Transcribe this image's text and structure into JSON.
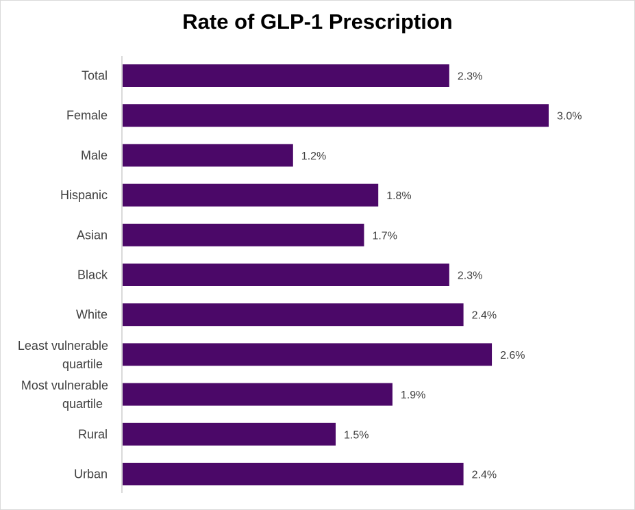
{
  "chart_data": {
    "type": "bar",
    "orientation": "horizontal",
    "title": "Rate of GLP-1 Prescription",
    "categories": [
      [
        "Total"
      ],
      [
        "Female"
      ],
      [
        "Male"
      ],
      [
        "Hispanic"
      ],
      [
        "Asian"
      ],
      [
        "Black"
      ],
      [
        "White"
      ],
      [
        "Least vulnerable",
        "quartile"
      ],
      [
        "Most vulnerable",
        "quartile"
      ],
      [
        "Rural"
      ],
      [
        "Urban"
      ]
    ],
    "values": [
      2.3,
      3.0,
      1.2,
      1.8,
      1.7,
      2.3,
      2.4,
      2.6,
      1.9,
      1.5,
      2.4
    ],
    "value_labels": [
      "2.3%",
      "3.0%",
      "1.2%",
      "1.8%",
      "1.7%",
      "2.3%",
      "2.4%",
      "2.6%",
      "1.9%",
      "1.5%",
      "2.4%"
    ],
    "xlim": [
      0,
      3.0
    ],
    "grid": false,
    "legend": "none",
    "bar_color": "#4b0868",
    "axis_color": "#d9d9d9"
  }
}
